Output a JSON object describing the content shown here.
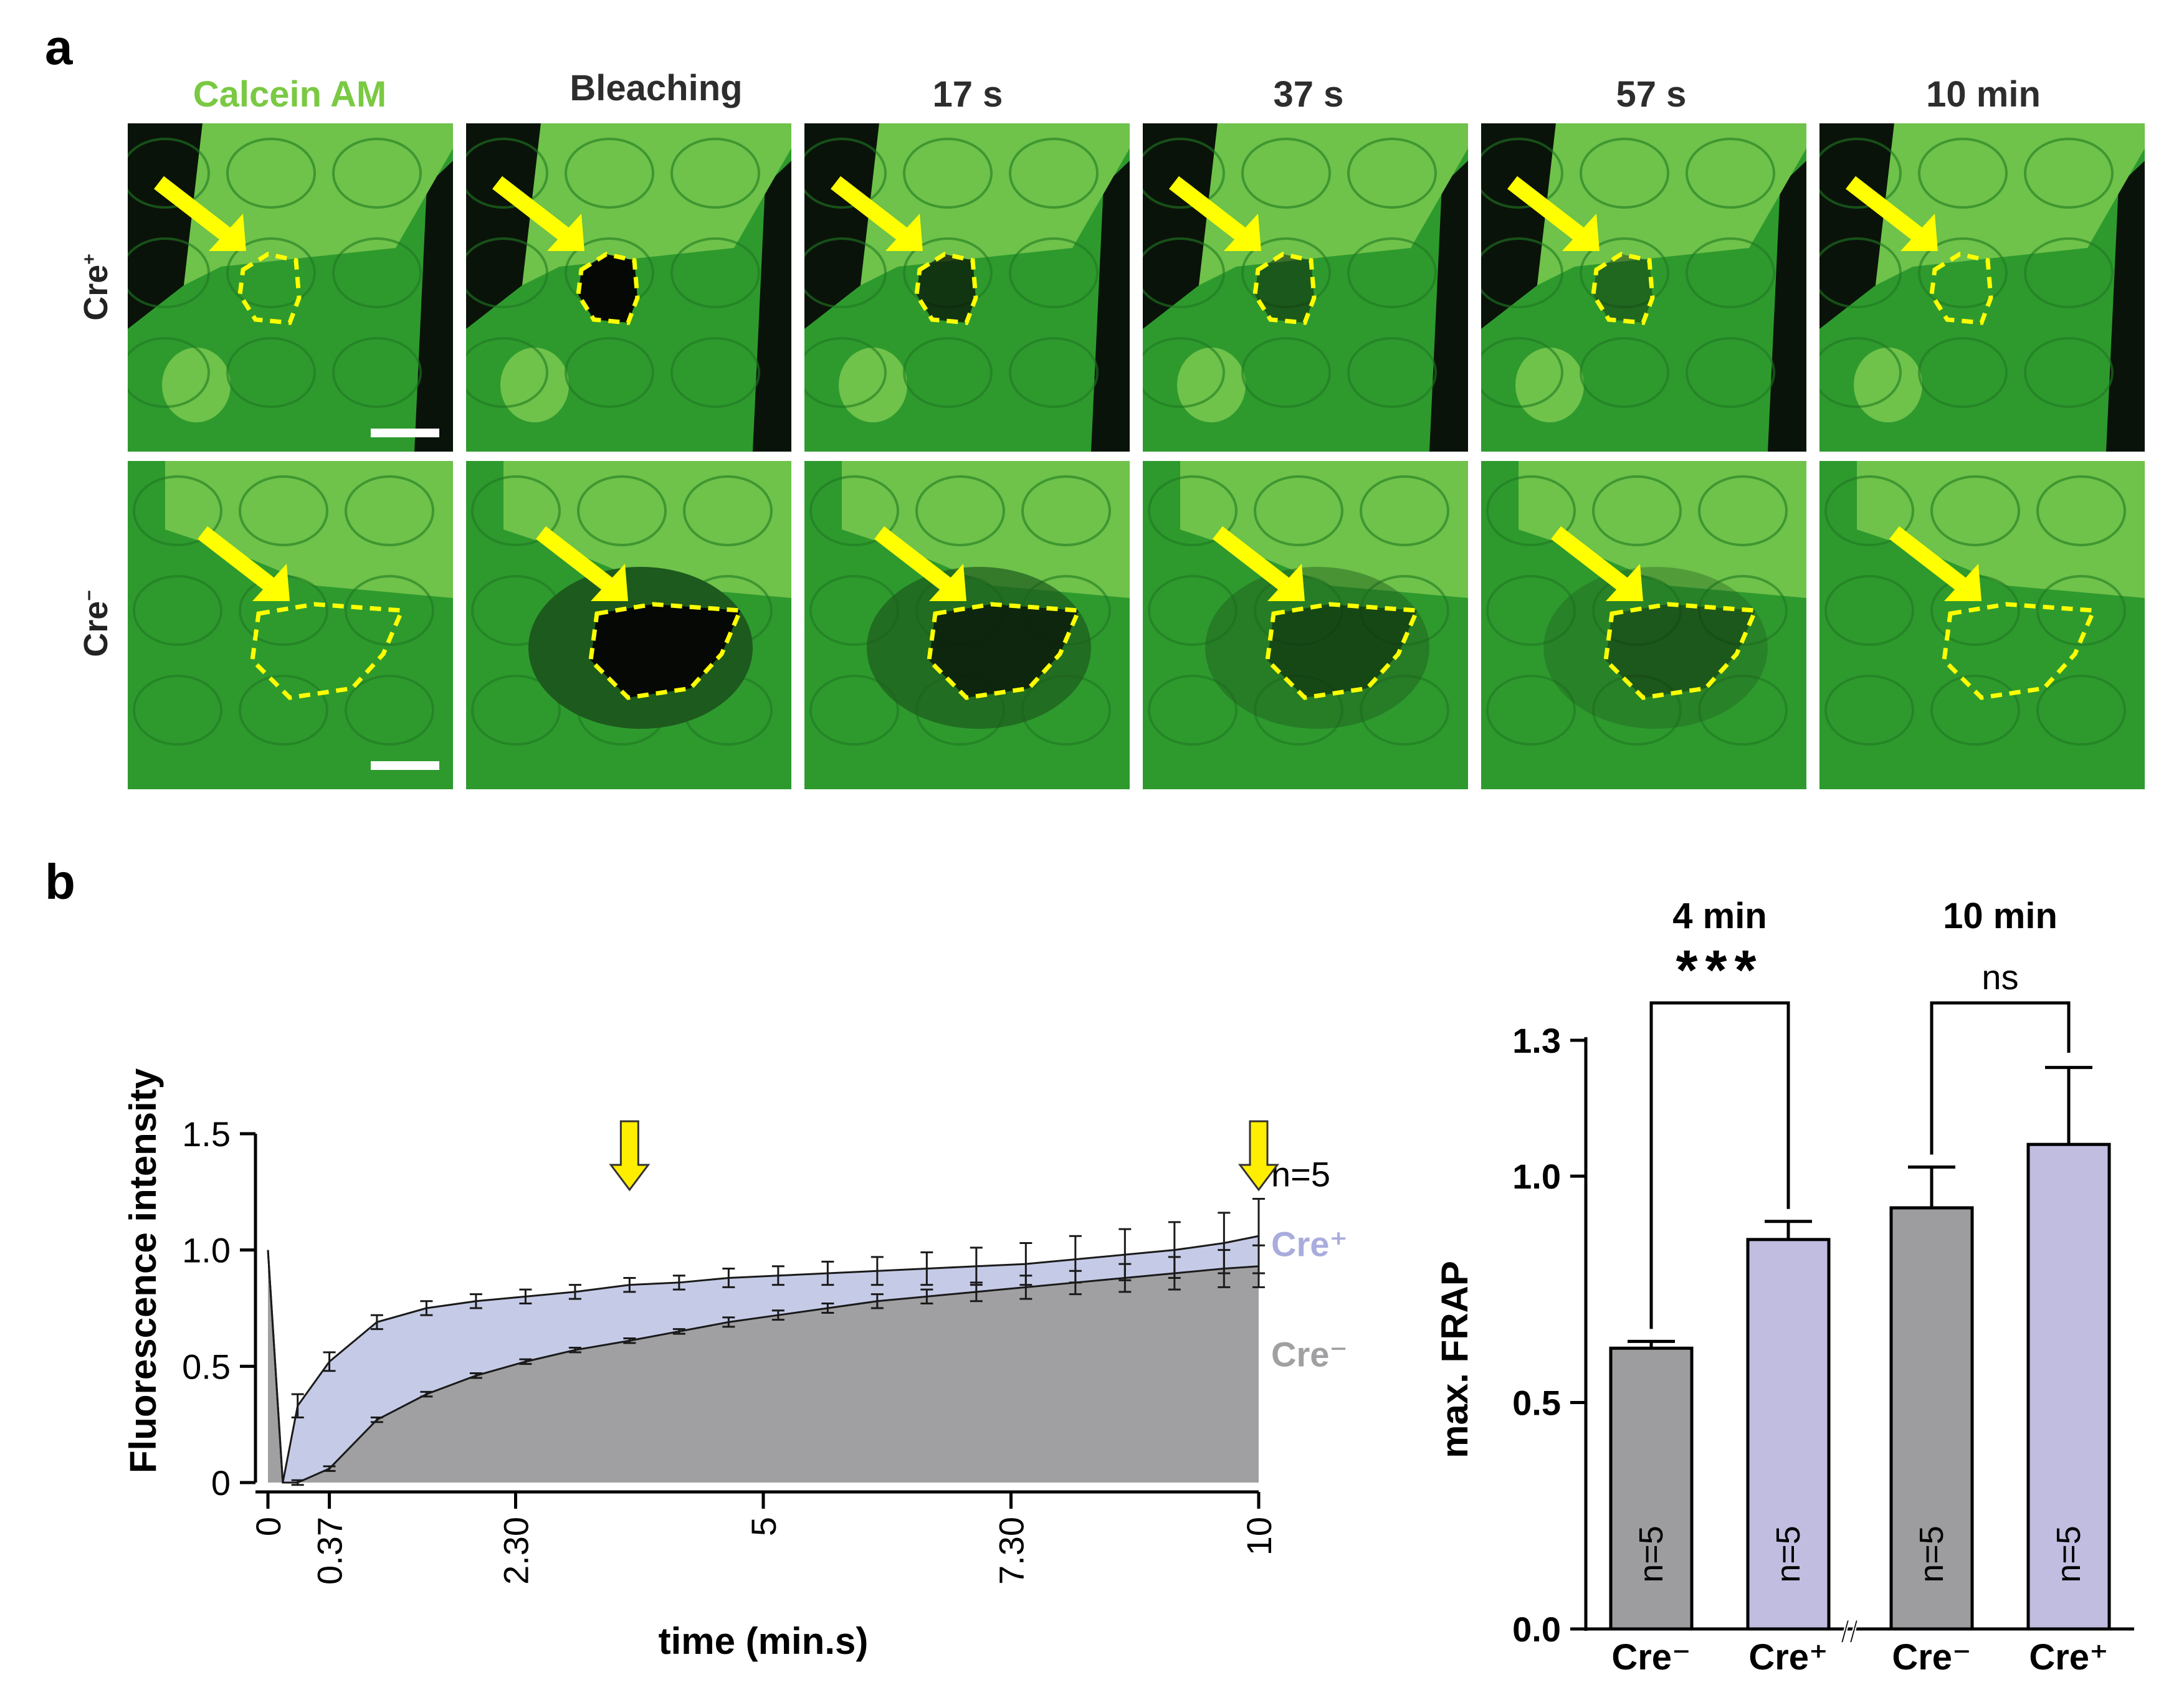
{
  "panel_a": {
    "letter": "a",
    "columns": [
      "Calcein AM",
      "Bleaching",
      "17 s",
      "37 s",
      "57 s",
      "10 min"
    ],
    "rows": [
      {
        "label": "Cre",
        "sign": "+"
      },
      {
        "label": "Cre",
        "sign": "−"
      }
    ],
    "colors": {
      "green": "#46b23a",
      "bright_green": "#6fc24a",
      "arrow": "#ffff00",
      "title_green": "#7ac943"
    }
  },
  "panel_b": {
    "letter": "b"
  },
  "chart_data": [
    {
      "type": "area",
      "title": "",
      "xlabel": "time (min.s)",
      "ylabel": "Fluorescence intensity",
      "x_ticks": [
        "0",
        "0.37",
        "2.30",
        "5",
        "7.30",
        "10"
      ],
      "x_tick_values": [
        0,
        0.62,
        2.5,
        5,
        7.5,
        10
      ],
      "y_ticks": [
        "0",
        "0.5",
        "1.0",
        "1.5"
      ],
      "xlim": [
        0,
        10
      ],
      "ylim": [
        0,
        1.5
      ],
      "annotation": "n=5",
      "marker_arrows_at": [
        3.65,
        10
      ],
      "series": [
        {
          "name": "Cre⁺",
          "color": "#c5cbe7",
          "x": [
            0,
            0.15,
            0.3,
            0.62,
            1.1,
            1.6,
            2.1,
            2.6,
            3.1,
            3.65,
            4.15,
            4.65,
            5.15,
            5.65,
            6.15,
            6.65,
            7.15,
            7.65,
            8.15,
            8.65,
            9.15,
            9.65,
            10
          ],
          "y": [
            1.0,
            0.0,
            0.33,
            0.52,
            0.69,
            0.75,
            0.78,
            0.8,
            0.82,
            0.85,
            0.86,
            0.88,
            0.89,
            0.9,
            0.91,
            0.92,
            0.93,
            0.94,
            0.96,
            0.98,
            1.0,
            1.03,
            1.06
          ],
          "err": [
            0,
            0,
            0.05,
            0.04,
            0.03,
            0.03,
            0.03,
            0.03,
            0.03,
            0.03,
            0.03,
            0.04,
            0.04,
            0.05,
            0.06,
            0.07,
            0.08,
            0.09,
            0.1,
            0.11,
            0.12,
            0.13,
            0.16
          ]
        },
        {
          "name": "Cre⁻",
          "color": "#a0a0a2",
          "x": [
            0,
            0.15,
            0.3,
            0.62,
            1.1,
            1.6,
            2.1,
            2.6,
            3.1,
            3.65,
            4.15,
            4.65,
            5.15,
            5.65,
            6.15,
            6.65,
            7.15,
            7.65,
            8.15,
            8.65,
            9.15,
            9.65,
            10
          ],
          "y": [
            1.0,
            0.0,
            0.0,
            0.06,
            0.27,
            0.38,
            0.46,
            0.52,
            0.57,
            0.61,
            0.65,
            0.69,
            0.72,
            0.75,
            0.78,
            0.8,
            0.82,
            0.84,
            0.86,
            0.88,
            0.9,
            0.92,
            0.93
          ],
          "err": [
            0,
            0,
            0.01,
            0.01,
            0.01,
            0.01,
            0.01,
            0.01,
            0.01,
            0.01,
            0.01,
            0.02,
            0.02,
            0.02,
            0.03,
            0.03,
            0.04,
            0.05,
            0.05,
            0.06,
            0.07,
            0.08,
            0.09
          ]
        }
      ]
    },
    {
      "type": "bar",
      "title": "",
      "xlabel": "",
      "ylabel": "max. FRAP",
      "y_ticks": [
        "0.0",
        "0.5",
        "1.0",
        "1.3"
      ],
      "y_tick_values": [
        0.0,
        0.5,
        1.0,
        1.3
      ],
      "ylim": [
        0,
        1.3
      ],
      "axis_break": "//",
      "groups": [
        {
          "label": "4 min",
          "significance": "***"
        },
        {
          "label": "10 min",
          "significance": "ns"
        }
      ],
      "categories": [
        "Cre⁻",
        "Cre⁺",
        "Cre⁻",
        "Cre⁺"
      ],
      "values": [
        0.62,
        0.86,
        0.93,
        1.07
      ],
      "errors": [
        0.015,
        0.04,
        0.09,
        0.17
      ],
      "bar_labels": [
        "n=5",
        "n=5",
        "n=5",
        "n=5"
      ],
      "colors": [
        "#9d9d9f",
        "#c1bde0",
        "#9d9d9f",
        "#c1bde0"
      ]
    }
  ]
}
